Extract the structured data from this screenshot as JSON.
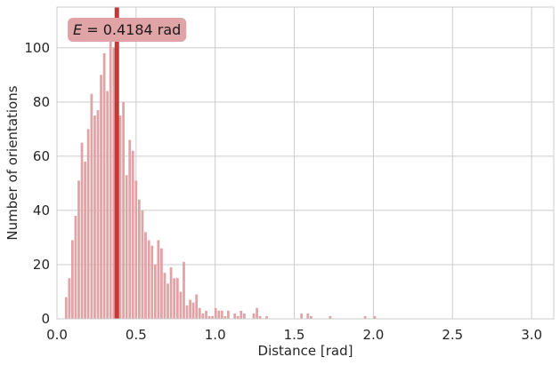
{
  "chart_data": {
    "type": "bar",
    "subtype": "histogram",
    "xlabel": "Distance [rad]",
    "ylabel": "Number of orientations",
    "xlim": [
      0,
      3.14
    ],
    "ylim": [
      0,
      115
    ],
    "xticks": [
      0.0,
      0.5,
      1.0,
      1.5,
      2.0,
      2.5,
      3.0
    ],
    "xtick_labels": [
      "0.0",
      "0.5",
      "1.0",
      "1.5",
      "2.0",
      "2.5",
      "3.0"
    ],
    "yticks": [
      0,
      20,
      40,
      60,
      80,
      100
    ],
    "ytick_labels": [
      "0",
      "20",
      "40",
      "60",
      "80",
      "100"
    ],
    "grid": true,
    "bin_width": 0.0201,
    "bins_start": [
      0.05,
      0.07,
      0.09,
      0.11,
      0.13,
      0.15,
      0.17,
      0.19,
      0.211,
      0.231,
      0.251,
      0.271,
      0.291,
      0.311,
      0.331,
      0.351,
      0.371,
      0.392,
      0.412,
      0.432,
      0.452,
      0.472,
      0.492,
      0.512,
      0.532,
      0.552,
      0.573,
      0.593,
      0.613,
      0.633,
      0.653,
      0.673,
      0.693,
      0.713,
      0.733,
      0.754,
      0.774,
      0.794,
      0.814,
      0.834,
      0.854,
      0.874,
      0.894,
      0.914,
      0.935,
      0.955,
      0.975,
      0.995,
      1.015,
      1.035,
      1.055,
      1.075,
      1.095,
      1.116,
      1.136,
      1.156,
      1.176,
      1.196,
      1.216,
      1.236,
      1.256,
      1.276,
      1.297,
      1.317,
      1.337,
      1.357,
      1.377,
      1.397,
      1.417,
      1.437,
      1.457,
      1.478,
      1.498,
      1.518,
      1.538,
      1.558,
      1.578,
      1.598,
      1.618,
      1.638,
      1.659,
      1.679,
      1.699,
      1.719,
      1.739,
      1.759,
      1.779,
      1.799,
      1.819,
      1.84,
      1.86,
      1.88,
      1.9,
      1.92,
      1.94,
      1.96,
      1.98,
      2.0,
      2.021,
      2.041,
      2.061,
      2.081,
      2.101,
      2.121,
      2.141,
      2.161,
      2.181,
      2.202,
      2.222,
      2.242,
      2.262,
      2.282,
      2.302,
      2.322,
      2.342,
      2.362,
      2.383,
      2.403,
      2.423,
      2.443,
      2.463,
      2.483,
      2.503,
      2.523,
      2.543,
      2.564,
      2.584,
      2.604,
      2.624,
      2.644,
      2.664,
      2.684,
      2.704,
      2.724,
      2.745,
      2.765,
      2.785,
      2.805,
      2.825,
      2.845,
      2.865,
      2.885,
      2.905,
      2.926,
      2.946,
      2.966,
      2.986,
      3.006
    ],
    "counts": [
      8,
      15,
      29,
      38,
      51,
      65,
      58,
      70,
      83,
      75,
      77,
      90,
      98,
      84,
      104,
      100,
      78,
      75,
      80,
      53,
      66,
      62,
      51,
      44,
      40,
      32,
      29,
      27,
      20,
      29,
      26,
      17,
      13,
      19,
      15,
      15,
      10,
      21,
      5,
      7,
      6,
      9,
      4,
      2,
      3,
      1,
      1,
      4,
      3,
      3,
      1,
      3,
      0,
      2,
      1,
      3,
      2,
      0,
      0,
      2,
      4,
      1,
      0,
      1,
      0,
      0,
      0,
      0,
      0,
      0,
      0,
      0,
      0,
      0,
      2,
      0,
      2,
      1,
      0,
      0,
      0,
      0,
      0,
      1,
      0,
      0,
      0,
      0,
      0,
      0,
      0,
      0,
      0,
      0,
      1,
      0,
      0,
      1,
      0,
      0,
      0,
      0,
      0,
      0,
      0,
      0,
      0,
      0,
      0,
      0,
      0,
      0,
      0,
      0,
      0,
      0,
      0,
      0,
      0,
      0,
      0,
      0,
      0,
      0,
      0,
      0,
      0,
      0,
      0,
      0,
      0,
      0,
      0,
      0,
      0,
      0,
      0,
      0,
      0,
      0,
      0,
      0,
      0,
      0,
      0,
      0,
      0,
      0,
      0
    ],
    "mean_line": {
      "x": 0.3784
    },
    "annotation": {
      "symbol": "E",
      "text": " = 0.4184 rad",
      "location": "upper-left"
    },
    "colors": {
      "bars": "#e0a4a6",
      "mean_line": "#c83737",
      "annotation_box": "#e0a4a6",
      "grid": "#cccccc"
    }
  }
}
